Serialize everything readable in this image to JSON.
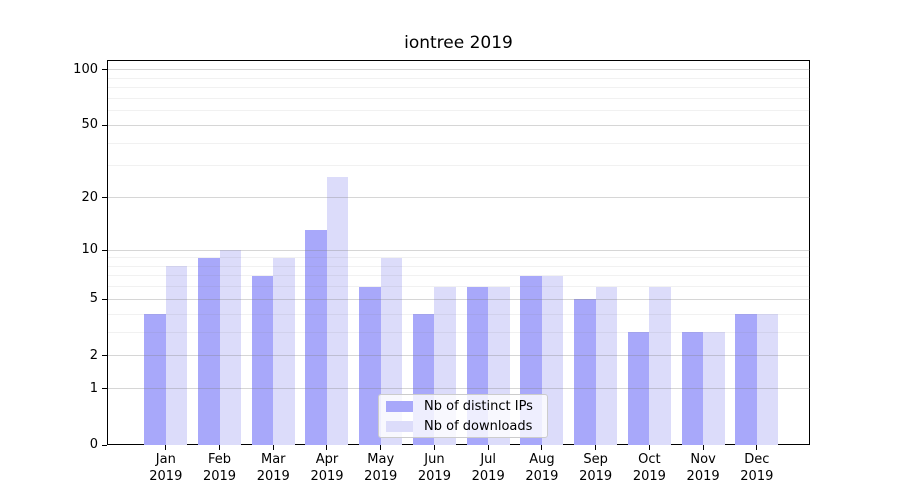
{
  "figure": {
    "title": "iontree 2019"
  },
  "chart_data": {
    "type": "bar",
    "title": "iontree 2019",
    "categories": [
      "Jan 2019",
      "Feb 2019",
      "Mar 2019",
      "Apr 2019",
      "May 2019",
      "Jun 2019",
      "Jul 2019",
      "Aug 2019",
      "Sep 2019",
      "Oct 2019",
      "Nov 2019",
      "Dec 2019"
    ],
    "series": [
      {
        "name": "Nb of distinct IPs",
        "color": "#a8a8fa",
        "values": [
          4,
          9,
          7,
          13,
          6,
          4,
          6,
          7,
          5,
          3,
          3,
          4
        ]
      },
      {
        "name": "Nb of downloads",
        "color": "#dcdcfa",
        "values": [
          8,
          10,
          9,
          26,
          9,
          6,
          6,
          7,
          6,
          6,
          3,
          4
        ]
      }
    ],
    "xlabel": "",
    "ylabel": "",
    "yscale": "log1p",
    "ylim": [
      0,
      113
    ],
    "yticks": [
      0,
      1,
      2,
      5,
      10,
      20,
      50,
      100
    ],
    "yticks_minor": [
      3,
      4,
      6,
      7,
      8,
      9,
      30,
      40,
      60,
      70,
      80,
      90
    ],
    "grid": "on",
    "legend_position": "lower center"
  }
}
